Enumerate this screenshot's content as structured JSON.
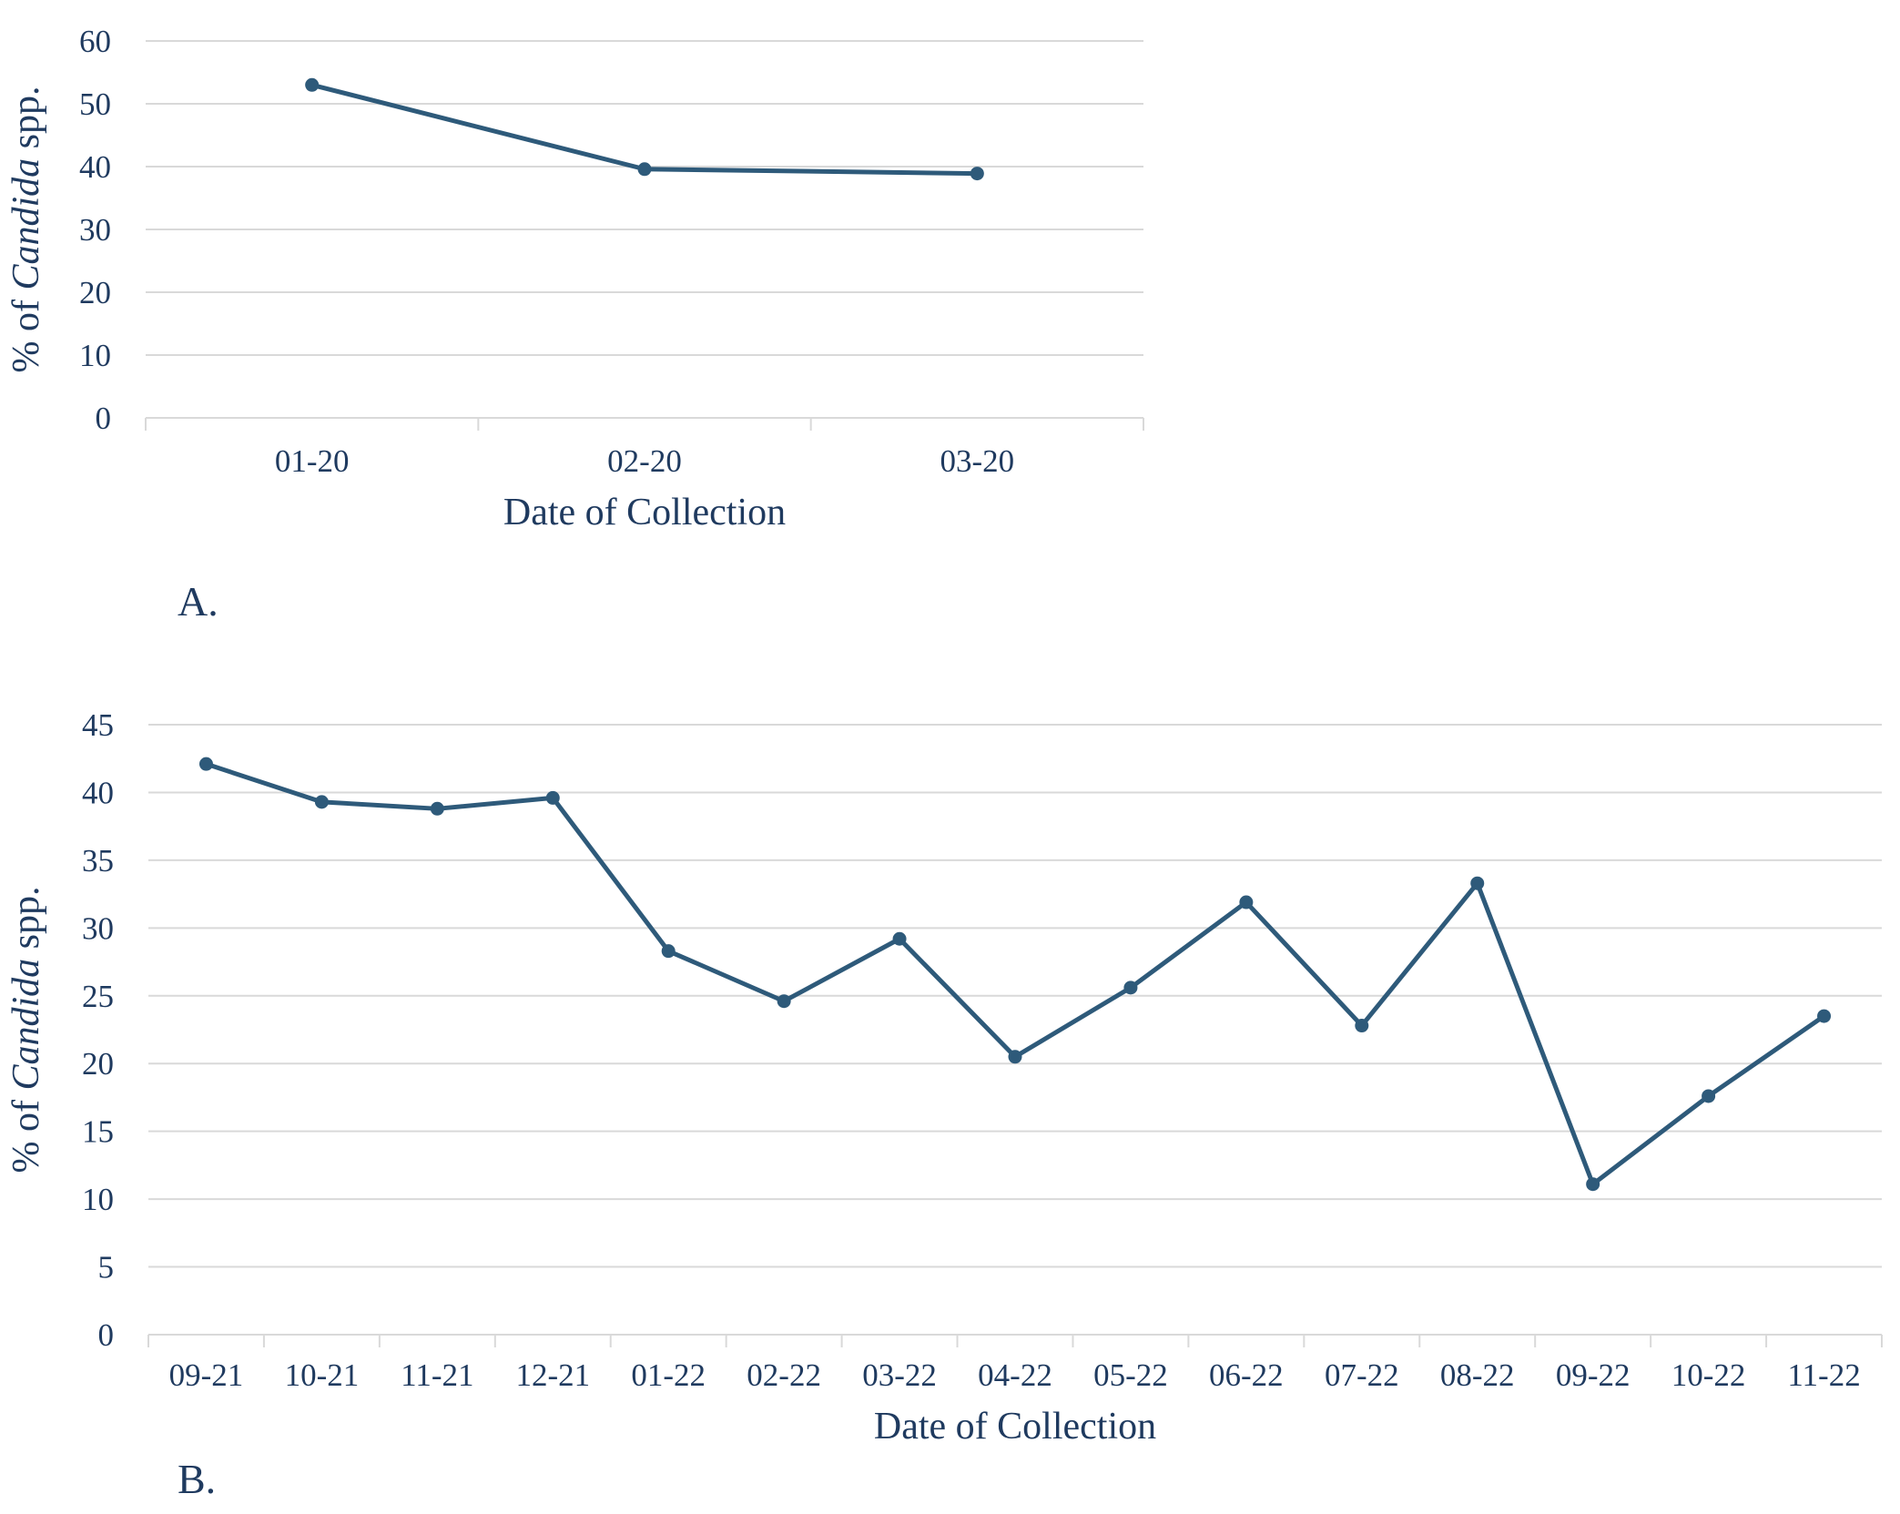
{
  "colors": {
    "series": "#2e5a7a",
    "text": "#1f3a5f",
    "grid": "#d9d9d9"
  },
  "chart_data": [
    {
      "panel_label": "A.",
      "type": "line",
      "categories": [
        "01-20",
        "02-20",
        "03-20"
      ],
      "series": [
        {
          "values": [
            53,
            39.6,
            38.9
          ]
        }
      ],
      "xlabel": "Date of Collection",
      "ylabel": {
        "prefix": "% of ",
        "italic": "Candida",
        "suffix": " spp."
      },
      "ylim": [
        0,
        60
      ],
      "yticks": [
        0,
        10,
        20,
        30,
        40,
        50,
        60
      ],
      "grid": true
    },
    {
      "panel_label": "B.",
      "type": "line",
      "categories": [
        "09-21",
        "10-21",
        "11-21",
        "12-21",
        "01-22",
        "02-22",
        "03-22",
        "04-22",
        "05-22",
        "06-22",
        "07-22",
        "08-22",
        "09-22",
        "10-22",
        "11-22"
      ],
      "series": [
        {
          "values": [
            42.1,
            39.3,
            38.8,
            39.6,
            28.3,
            24.6,
            29.2,
            20.5,
            25.6,
            31.9,
            22.8,
            33.3,
            11.1,
            17.6,
            23.5
          ]
        }
      ],
      "xlabel": "Date of Collection",
      "ylabel": {
        "prefix": "% of ",
        "italic": "Candida",
        "suffix": " spp."
      },
      "ylim": [
        0,
        45
      ],
      "yticks": [
        0,
        5,
        10,
        15,
        20,
        25,
        30,
        35,
        40,
        45
      ],
      "grid": true
    }
  ]
}
